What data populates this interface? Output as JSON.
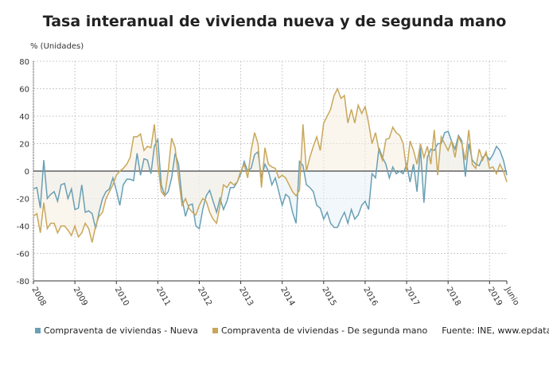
{
  "chart_data": {
    "type": "line",
    "title": "Tasa interanual de vivienda nueva y de segunda mano",
    "ylabel": "% (Unidades)",
    "ylim": [
      -80,
      80
    ],
    "yticks": [
      80,
      60,
      40,
      20,
      0,
      -20,
      -40,
      -60,
      -80
    ],
    "x_start": "2008-01",
    "x_end": "2019-06",
    "xtick_labels": [
      "2008",
      "2009",
      "2010",
      "2011",
      "2012",
      "2013",
      "2014",
      "2015",
      "2016",
      "2017",
      "2018",
      "2019",
      "Junio"
    ],
    "grid": true,
    "legend": "bottom",
    "source": "Fuente: INE, www.epdata.es",
    "series": [
      {
        "name": "Compraventa de viviendas - Nueva",
        "color": "#6a9fb5",
        "values": [
          -13,
          -12,
          -27,
          8,
          -20,
          -17,
          -15,
          -22,
          -10,
          -9,
          -20,
          -13,
          -28,
          -27,
          -10,
          -30,
          -29,
          -31,
          -42,
          -30,
          -20,
          -15,
          -13,
          -5,
          -14,
          -25,
          -10,
          -6,
          -6,
          -7,
          13,
          -3,
          9,
          8,
          -2,
          18,
          23,
          -10,
          -18,
          -15,
          -5,
          13,
          5,
          -20,
          -33,
          -25,
          -24,
          -40,
          -42,
          -28,
          -18,
          -14,
          -22,
          -30,
          -20,
          -28,
          -22,
          -12,
          -12,
          -8,
          -2,
          7,
          0,
          2,
          12,
          14,
          -5,
          5,
          0,
          -10,
          -5,
          -15,
          -25,
          -17,
          -19,
          -30,
          -38,
          7,
          4,
          -10,
          -12,
          -15,
          -25,
          -27,
          -35,
          -30,
          -38,
          -41,
          -41,
          -35,
          -30,
          -38,
          -28,
          -35,
          -32,
          -25,
          -22,
          -28,
          -2,
          -5,
          17,
          10,
          5,
          -5,
          3,
          -2,
          0,
          -2,
          5,
          -8,
          5,
          -15,
          17,
          -23,
          10,
          16,
          15,
          20,
          20,
          28,
          29,
          22,
          16,
          26,
          22,
          -4,
          20,
          8,
          5,
          4,
          10,
          12,
          8,
          12,
          18,
          15,
          8,
          -3
        ]
      },
      {
        "name": "Compraventa de viviendas - De segunda mano",
        "color": "#c9a75a",
        "values": [
          -33,
          -31,
          -45,
          -23,
          -42,
          -38,
          -38,
          -45,
          -40,
          -40,
          -43,
          -47,
          -40,
          -48,
          -45,
          -38,
          -42,
          -52,
          -40,
          -33,
          -30,
          -20,
          -15,
          -10,
          -3,
          0,
          2,
          5,
          10,
          25,
          25,
          27,
          15,
          18,
          17,
          34,
          5,
          -15,
          -18,
          0,
          24,
          17,
          -5,
          -25,
          -20,
          -27,
          -30,
          -32,
          -25,
          -20,
          -22,
          -30,
          -35,
          -38,
          -25,
          -10,
          -12,
          -8,
          -10,
          -8,
          0,
          5,
          -5,
          15,
          28,
          20,
          -12,
          17,
          5,
          3,
          2,
          -5,
          -3,
          -5,
          -10,
          -15,
          -18,
          -14,
          34,
          0,
          10,
          18,
          25,
          15,
          35,
          40,
          45,
          55,
          60,
          53,
          55,
          35,
          45,
          35,
          48,
          42,
          47,
          35,
          20,
          28,
          15,
          8,
          23,
          24,
          32,
          28,
          26,
          20,
          0,
          22,
          15,
          5,
          20,
          10,
          18,
          5,
          30,
          -3,
          25,
          20,
          15,
          22,
          10,
          25,
          20,
          8,
          30,
          5,
          2,
          16,
          8,
          14,
          2,
          3,
          -2,
          5,
          0,
          -8
        ]
      }
    ]
  }
}
